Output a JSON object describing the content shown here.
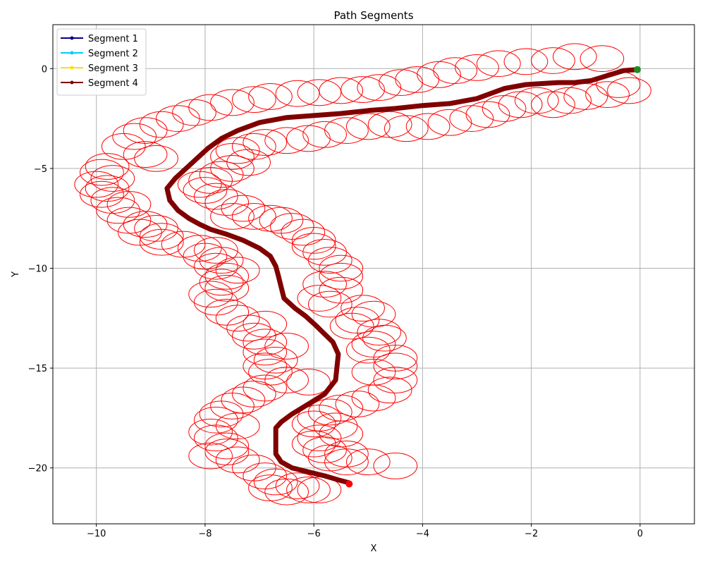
{
  "chart_data": {
    "type": "line",
    "title": "Path Segments",
    "xlabel": "X",
    "ylabel": "Y",
    "xlim": [
      -10.8,
      1.0
    ],
    "ylim": [
      -22.8,
      2.2
    ],
    "xticks": [
      -10,
      -8,
      -6,
      -4,
      -2,
      0
    ],
    "yticks": [
      0,
      -5,
      -10,
      -15,
      -20
    ],
    "grid": true,
    "legend_position": "top-left",
    "series": [
      {
        "name": "Segment 1",
        "color": "#00008b",
        "x": [],
        "y": []
      },
      {
        "name": "Segment 2",
        "color": "#00ccff",
        "x": [],
        "y": []
      },
      {
        "name": "Segment 3",
        "color": "#ffe000",
        "x": [],
        "y": []
      },
      {
        "name": "Segment 4",
        "color": "#800000",
        "x": [
          -0.05,
          -0.3,
          -0.6,
          -0.9,
          -1.2,
          -1.5,
          -1.8,
          -2.1,
          -2.5,
          -3.0,
          -3.5,
          -4.0,
          -4.5,
          -5.0,
          -5.5,
          -6.0,
          -6.5,
          -7.0,
          -7.4,
          -7.7,
          -7.95,
          -8.15,
          -8.35,
          -8.55,
          -8.7,
          -8.65,
          -8.5,
          -8.3,
          -8.1,
          -7.9,
          -7.6,
          -7.3,
          -7.0,
          -6.8,
          -6.7,
          -6.65,
          -6.55,
          -6.35,
          -6.15,
          -5.95,
          -5.8,
          -5.65,
          -5.55,
          -5.6,
          -5.8,
          -6.1,
          -6.4,
          -6.6,
          -6.7,
          -6.7,
          -6.6,
          -6.4,
          -6.1,
          -5.8,
          -5.55,
          -5.35
        ],
        "y": [
          -0.05,
          -0.1,
          -0.35,
          -0.6,
          -0.7,
          -0.7,
          -0.75,
          -0.8,
          -1.0,
          -1.5,
          -1.75,
          -1.85,
          -2.0,
          -2.1,
          -2.25,
          -2.35,
          -2.45,
          -2.7,
          -3.1,
          -3.5,
          -4.0,
          -4.5,
          -5.0,
          -5.5,
          -6.0,
          -6.6,
          -7.1,
          -7.5,
          -7.8,
          -8.05,
          -8.3,
          -8.6,
          -9.0,
          -9.4,
          -9.9,
          -10.4,
          -11.5,
          -12.0,
          -12.4,
          -12.9,
          -13.3,
          -13.7,
          -14.3,
          -15.6,
          -16.3,
          -16.8,
          -17.3,
          -17.7,
          -18.0,
          -19.3,
          -19.7,
          -20.0,
          -20.2,
          -20.4,
          -20.6,
          -20.75
        ]
      }
    ],
    "start_marker": {
      "x": -0.05,
      "y": -0.05,
      "color": "#228b22"
    },
    "end_marker": {
      "x": -5.35,
      "y": -20.8,
      "color": "#ff0000"
    },
    "ellipses": {
      "color": "#ff0000",
      "rx": 0.4,
      "ry": 0.65,
      "centers": [
        [
          -1.2,
          0.6
        ],
        [
          -0.7,
          0.5
        ],
        [
          -1.6,
          0.4
        ],
        [
          -2.1,
          0.35
        ],
        [
          -2.6,
          0.25
        ],
        [
          -3.0,
          0.05
        ],
        [
          -3.4,
          -0.1
        ],
        [
          -3.7,
          -0.3
        ],
        [
          -4.1,
          -0.55
        ],
        [
          -4.4,
          -0.7
        ],
        [
          -4.8,
          -0.95
        ],
        [
          -5.1,
          -1.05
        ],
        [
          -5.5,
          -1.1
        ],
        [
          -5.9,
          -1.2
        ],
        [
          -6.3,
          -1.25
        ],
        [
          -6.8,
          -1.4
        ],
        [
          -7.1,
          -1.55
        ],
        [
          -7.5,
          -1.7
        ],
        [
          -7.9,
          -1.95
        ],
        [
          -8.2,
          -2.2
        ],
        [
          -8.5,
          -2.5
        ],
        [
          -8.8,
          -2.8
        ],
        [
          -9.1,
          -3.1
        ],
        [
          -9.3,
          -3.4
        ],
        [
          -9.5,
          -3.9
        ],
        [
          -9.1,
          -4.3
        ],
        [
          -8.9,
          -4.5
        ],
        [
          -9.8,
          -4.9
        ],
        [
          -9.9,
          -5.2
        ],
        [
          -9.7,
          -5.5
        ],
        [
          -10.0,
          -5.8
        ],
        [
          -9.8,
          -6.0
        ],
        [
          -9.9,
          -6.3
        ],
        [
          -9.7,
          -6.6
        ],
        [
          -9.4,
          -6.8
        ],
        [
          -9.6,
          -7.1
        ],
        [
          -9.4,
          -7.6
        ],
        [
          -9.1,
          -7.8
        ],
        [
          -8.9,
          -8.0
        ],
        [
          -9.2,
          -8.2
        ],
        [
          -8.8,
          -8.4
        ],
        [
          -8.8,
          -8.7
        ],
        [
          -8.4,
          -8.8
        ],
        [
          -8.1,
          -9.0
        ],
        [
          -7.8,
          -9.1
        ],
        [
          -8.0,
          -9.4
        ],
        [
          -7.7,
          -9.6
        ],
        [
          -7.8,
          -9.9
        ],
        [
          -7.4,
          -10.1
        ],
        [
          -7.6,
          -10.4
        ],
        [
          -7.7,
          -10.7
        ],
        [
          -7.6,
          -11.0
        ],
        [
          -7.9,
          -11.3
        ],
        [
          -7.8,
          -11.7
        ],
        [
          -7.6,
          -12.2
        ],
        [
          -7.4,
          -12.5
        ],
        [
          -6.9,
          -12.8
        ],
        [
          -7.2,
          -13.0
        ],
        [
          -7.1,
          -13.4
        ],
        [
          -6.9,
          -13.7
        ],
        [
          -6.5,
          -13.9
        ],
        [
          -6.9,
          -14.2
        ],
        [
          -6.7,
          -14.6
        ],
        [
          -6.9,
          -14.9
        ],
        [
          -6.8,
          -15.2
        ],
        [
          -6.5,
          -15.6
        ],
        [
          -6.1,
          -15.7
        ],
        [
          -6.9,
          -16.0
        ],
        [
          -7.1,
          -16.3
        ],
        [
          -7.3,
          -16.6
        ],
        [
          -7.5,
          -16.9
        ],
        [
          -7.7,
          -17.3
        ],
        [
          -7.8,
          -17.6
        ],
        [
          -7.4,
          -17.9
        ],
        [
          -7.9,
          -18.2
        ],
        [
          -7.8,
          -18.5
        ],
        [
          -7.6,
          -18.9
        ],
        [
          -7.6,
          -19.2
        ],
        [
          -7.9,
          -19.4
        ],
        [
          -7.4,
          -19.6
        ],
        [
          -7.1,
          -20.0
        ],
        [
          -6.9,
          -20.4
        ],
        [
          -6.7,
          -20.7
        ],
        [
          -6.3,
          -20.9
        ],
        [
          -6.8,
          -21.0
        ],
        [
          -6.5,
          -21.2
        ],
        [
          -6.1,
          -21.1
        ],
        [
          -5.9,
          -21.1
        ],
        [
          -0.4,
          -0.8
        ],
        [
          -0.2,
          -1.1
        ],
        [
          -0.6,
          -1.3
        ],
        [
          -1.0,
          -1.4
        ],
        [
          -1.3,
          -1.6
        ],
        [
          -1.6,
          -1.8
        ],
        [
          -1.9,
          -1.6
        ],
        [
          -2.2,
          -1.8
        ],
        [
          -2.5,
          -2.0
        ],
        [
          -2.8,
          -2.3
        ],
        [
          -3.1,
          -2.5
        ],
        [
          -3.5,
          -2.7
        ],
        [
          -3.9,
          -2.9
        ],
        [
          -4.3,
          -3.0
        ],
        [
          -4.6,
          -2.8
        ],
        [
          -5.0,
          -2.9
        ],
        [
          -5.4,
          -3.1
        ],
        [
          -5.8,
          -3.3
        ],
        [
          -6.1,
          -3.5
        ],
        [
          -6.5,
          -3.6
        ],
        [
          -6.9,
          -3.7
        ],
        [
          -7.1,
          -3.9
        ],
        [
          -7.4,
          -4.1
        ],
        [
          -7.5,
          -4.4
        ],
        [
          -7.2,
          -4.7
        ],
        [
          -7.5,
          -5.0
        ],
        [
          -7.7,
          -5.3
        ],
        [
          -7.9,
          -5.6
        ],
        [
          -8.1,
          -5.8
        ],
        [
          -8.0,
          -6.1
        ],
        [
          -7.8,
          -6.4
        ],
        [
          -7.6,
          -6.7
        ],
        [
          -7.3,
          -7.0
        ],
        [
          -7.5,
          -7.4
        ],
        [
          -7.1,
          -7.4
        ],
        [
          -6.8,
          -7.5
        ],
        [
          -6.6,
          -7.6
        ],
        [
          -6.4,
          -7.9
        ],
        [
          -6.2,
          -8.2
        ],
        [
          -6.0,
          -8.6
        ],
        [
          -6.0,
          -8.9
        ],
        [
          -5.8,
          -9.2
        ],
        [
          -5.7,
          -9.6
        ],
        [
          -5.5,
          -10.0
        ],
        [
          -5.5,
          -10.4
        ],
        [
          -5.8,
          -10.8
        ],
        [
          -5.5,
          -11.1
        ],
        [
          -5.9,
          -11.5
        ],
        [
          -5.7,
          -11.8
        ],
        [
          -5.1,
          -12.0
        ],
        [
          -4.9,
          -12.3
        ],
        [
          -5.2,
          -12.6
        ],
        [
          -5.3,
          -12.9
        ],
        [
          -4.8,
          -13.2
        ],
        [
          -4.7,
          -13.5
        ],
        [
          -4.9,
          -13.8
        ],
        [
          -5.0,
          -14.1
        ],
        [
          -4.5,
          -14.5
        ],
        [
          -4.5,
          -14.9
        ],
        [
          -4.9,
          -15.2
        ],
        [
          -4.5,
          -15.6
        ],
        [
          -4.6,
          -16.1
        ],
        [
          -4.9,
          -16.5
        ],
        [
          -5.2,
          -16.8
        ],
        [
          -5.5,
          -17.0
        ],
        [
          -5.7,
          -17.2
        ],
        [
          -5.9,
          -17.5
        ],
        [
          -6.0,
          -17.8
        ],
        [
          -5.6,
          -17.9
        ],
        [
          -5.5,
          -18.3
        ],
        [
          -5.9,
          -18.5
        ],
        [
          -6.0,
          -18.8
        ],
        [
          -5.8,
          -19.1
        ],
        [
          -5.4,
          -19.3
        ],
        [
          -5.7,
          -19.5
        ],
        [
          -5.4,
          -19.7
        ],
        [
          -5.0,
          -19.7
        ],
        [
          -4.5,
          -19.9
        ]
      ]
    }
  }
}
